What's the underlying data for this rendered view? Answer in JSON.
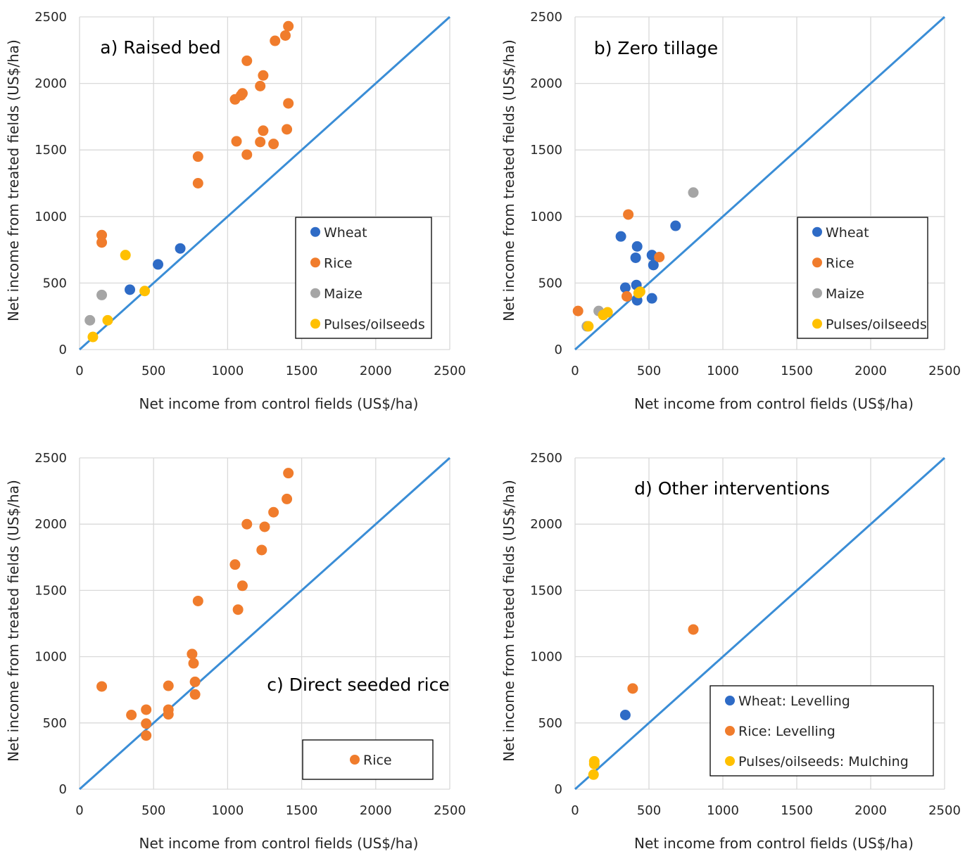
{
  "colors": {
    "wheat": "#2E6BC6",
    "rice": "#F07C2C",
    "maize": "#A5A5A5",
    "pulses": "#FFC000",
    "line": "#3A8DD6",
    "grid": "#D9D9D9"
  },
  "chart_data": [
    {
      "type": "scatter",
      "title": "a) Raised bed",
      "xlabel": "Net income from control fields (US$/ha)",
      "ylabel": "Net income from treated fields (US$/ha)",
      "xlim": [
        0,
        2500
      ],
      "ylim": [
        0,
        2500
      ],
      "xticks": [
        "0",
        "500",
        "1000",
        "1500",
        "2000",
        "2500"
      ],
      "yticks": [
        "0",
        "500",
        "1000",
        "1500",
        "2000",
        "2500"
      ],
      "grid": true,
      "legend_position": "lower-right",
      "reference_line": "1:1",
      "series": [
        {
          "name": "Wheat",
          "color_key": "wheat",
          "points": [
            [
              340,
              450
            ],
            [
              530,
              640
            ],
            [
              680,
              760
            ]
          ]
        },
        {
          "name": "Rice",
          "color_key": "rice",
          "points": [
            [
              150,
              860
            ],
            [
              150,
              805
            ],
            [
              800,
              1450
            ],
            [
              800,
              1250
            ],
            [
              1050,
              1880
            ],
            [
              1090,
              1910
            ],
            [
              1100,
              1925
            ],
            [
              1130,
              2170
            ],
            [
              1220,
              1980
            ],
            [
              1240,
              2060
            ],
            [
              1060,
              1565
            ],
            [
              1130,
              1465
            ],
            [
              1220,
              1560
            ],
            [
              1240,
              1645
            ],
            [
              1310,
              1545
            ],
            [
              1320,
              2320
            ],
            [
              1390,
              2360
            ],
            [
              1410,
              2430
            ],
            [
              1400,
              1655
            ],
            [
              1410,
              1850
            ]
          ]
        },
        {
          "name": "Maize",
          "color_key": "maize",
          "points": [
            [
              70,
              220
            ],
            [
              150,
              410
            ]
          ]
        },
        {
          "name": "Pulses/oilseeds",
          "color_key": "pulses",
          "points": [
            [
              90,
              95
            ],
            [
              190,
              220
            ],
            [
              310,
              710
            ],
            [
              440,
              440
            ]
          ]
        }
      ]
    },
    {
      "type": "scatter",
      "title": "b) Zero tillage",
      "xlabel": "Net income from control fields (US$/ha)",
      "ylabel": "Net income from treated fields (US$/ha)",
      "xlim": [
        0,
        2500
      ],
      "ylim": [
        0,
        2500
      ],
      "xticks": [
        "0",
        "500",
        "1000",
        "1500",
        "2000",
        "2500"
      ],
      "yticks": [
        "0",
        "500",
        "1000",
        "1500",
        "2000",
        "2500"
      ],
      "grid": true,
      "legend_position": "lower-right",
      "reference_line": "1:1",
      "series": [
        {
          "name": "Wheat",
          "color_key": "wheat",
          "points": [
            [
              310,
              850
            ],
            [
              340,
              465
            ],
            [
              410,
              690
            ],
            [
              420,
              775
            ],
            [
              415,
              485
            ],
            [
              420,
              370
            ],
            [
              520,
              710
            ],
            [
              530,
              635
            ],
            [
              520,
              385
            ],
            [
              680,
              930
            ]
          ]
        },
        {
          "name": "Rice",
          "color_key": "rice",
          "points": [
            [
              20,
              290
            ],
            [
              360,
              1015
            ],
            [
              350,
              400
            ],
            [
              570,
              695
            ]
          ]
        },
        {
          "name": "Maize",
          "color_key": "maize",
          "points": [
            [
              80,
              175
            ],
            [
              160,
              290
            ],
            [
              800,
              1180
            ]
          ]
        },
        {
          "name": "Pulses/oilseeds",
          "color_key": "pulses",
          "points": [
            [
              90,
              175
            ],
            [
              190,
              260
            ],
            [
              220,
              280
            ],
            [
              440,
              435
            ],
            [
              430,
              425
            ]
          ]
        }
      ]
    },
    {
      "type": "scatter",
      "title": "c) Direct seeded rice",
      "xlabel": "Net income from control fields (US$/ha)",
      "ylabel": "Net income from treated fields (US$/ha)",
      "xlim": [
        0,
        2500
      ],
      "ylim": [
        0,
        2500
      ],
      "xticks": [
        "0",
        "500",
        "1000",
        "1500",
        "2000",
        "2500"
      ],
      "yticks": [
        "0",
        "500",
        "1000",
        "1500",
        "2000",
        "2500"
      ],
      "grid": true,
      "legend_position": "lower-right",
      "reference_line": "1:1",
      "series": [
        {
          "name": "Rice",
          "color_key": "rice",
          "points": [
            [
              150,
              775
            ],
            [
              350,
              560
            ],
            [
              450,
              600
            ],
            [
              450,
              495
            ],
            [
              450,
              405
            ],
            [
              600,
              780
            ],
            [
              600,
              600
            ],
            [
              600,
              565
            ],
            [
              760,
              1020
            ],
            [
              770,
              950
            ],
            [
              780,
              810
            ],
            [
              780,
              715
            ],
            [
              800,
              1420
            ],
            [
              1050,
              1695
            ],
            [
              1070,
              1355
            ],
            [
              1100,
              1535
            ],
            [
              1130,
              2000
            ],
            [
              1230,
              1805
            ],
            [
              1250,
              1980
            ],
            [
              1310,
              2090
            ],
            [
              1400,
              2190
            ],
            [
              1410,
              2385
            ]
          ]
        }
      ]
    },
    {
      "type": "scatter",
      "title": "d) Other interventions",
      "xlabel": "Net income from control fields (US$/ha)",
      "ylabel": "Net income from treated fields (US$/ha)",
      "xlim": [
        0,
        2500
      ],
      "ylim": [
        0,
        2500
      ],
      "xticks": [
        "0",
        "500",
        "1000",
        "1500",
        "2000",
        "2500"
      ],
      "yticks": [
        "0",
        "500",
        "1000",
        "1500",
        "2000",
        "2500"
      ],
      "grid": true,
      "legend_position": "lower-right",
      "reference_line": "1:1",
      "series": [
        {
          "name": "Wheat: Levelling",
          "color_key": "wheat",
          "points": [
            [
              340,
              560
            ]
          ]
        },
        {
          "name": "Rice: Levelling",
          "color_key": "rice",
          "points": [
            [
              390,
              760
            ],
            [
              800,
              1205
            ]
          ]
        },
        {
          "name": "Pulses/oilseeds: Mulching",
          "color_key": "pulses",
          "points": [
            [
              125,
              110
            ],
            [
              130,
              190
            ],
            [
              130,
              210
            ]
          ]
        }
      ]
    }
  ]
}
